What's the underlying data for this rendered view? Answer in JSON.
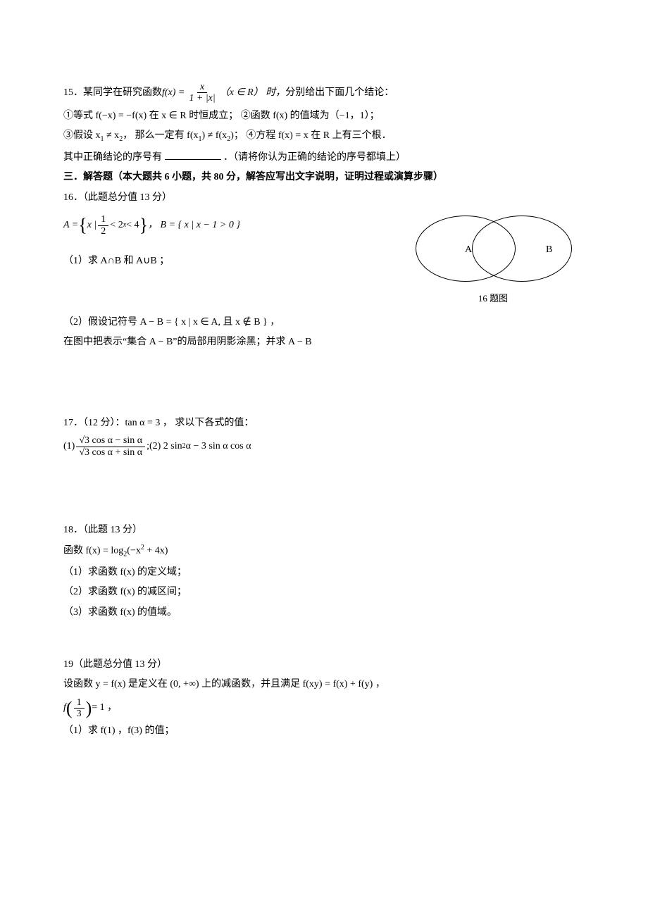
{
  "q15": {
    "num": "15．",
    "intro_a": "某同学在研究函数 ",
    "fx_lhs": "f(x) = ",
    "frac_num": "x",
    "frac_den": "1 + |x|",
    "domain_note": "（x ∈ R） 时， ",
    "intro_b": "分别给出下面几个结论：",
    "item1": "①等式 f(−x) = −f(x) 在 x ∈ R 时恒成立；  ②函数 f(x) 的值域为（−1，1）；",
    "item3a": "③假设 x",
    "sub1": "1",
    "ne": " ≠ x",
    "sub2": "2",
    "item3b": "，  那么一定有 f(x",
    "item3c": ") ≠ f(x",
    "item3d": ")；  ④方程 f(x) = x 在 R 上有三个根．",
    "tail_a": "其中正确结论的序号有",
    "tail_b": "．（请将你认为正确的结论的序号都填上）"
  },
  "section3": "三．解答题（本大题共 6 小题，共 80 分，解答应写出文字说明，证明过程或演算步骤）",
  "q16": {
    "head": "16．（此题总分值 13 分）",
    "setA_pre": "A = ",
    "setA_mid_a": "x | ",
    "frac_half_num": "1",
    "frac_half_den": "2",
    "setA_mid_b": " < 2",
    "setA_sup": "x",
    "setA_mid_c": " < 4",
    "setB": "，    B = { x | x − 1 > 0 }",
    "part1": "（1）求 A∩B 和 A∪B ；",
    "part2": "（2）假设记符号 A − B = { x | x ∈ A, 且 x ∉ B } ，",
    "part3": "在图中把表示“集合 A − B”的局部用阴影涂黑；并求 A − B",
    "figLabelA": "A",
    "figLabelB": "B",
    "figCaption": "16 题图"
  },
  "q17": {
    "head": "17．（12 分）：tan α = 3 ，",
    "tail": "求以下各式的值：",
    "p1": "(1)",
    "frac1_num": "√3 cos α − sin α",
    "frac1_den": "√3 cos α + sin α",
    "sep": " ; ",
    "p2": "(2) 2 sin",
    "sup2": "2",
    "p2b": " α − 3 sin α cos α"
  },
  "q18": {
    "head": "18．（此题 13 分）",
    "func_a": "函数 f(x) = log",
    "sub2": "2",
    "func_b": "(−x",
    "func_c": " + 4x)",
    "p1": "（1）求函数 f(x) 的定义域；",
    "p2": "（2）求函数 f(x) 的减区间；",
    "p3": "（3）求函数 f(x) 的值域。"
  },
  "q19": {
    "head": "19（此题总分值 13 分）",
    "line1": "设函数 y = f(x) 是定义在 (0, +∞) 上的减函数，并且满足 f(xy) = f(x) + f(y) ，",
    "fpre": "f",
    "lpar": "(",
    "frac_num": "1",
    "frac_den": "3",
    "rpar": ")",
    "eq1": " = 1 ，",
    "p1": "（1）求 f(1) ，f(3) 的值；"
  }
}
